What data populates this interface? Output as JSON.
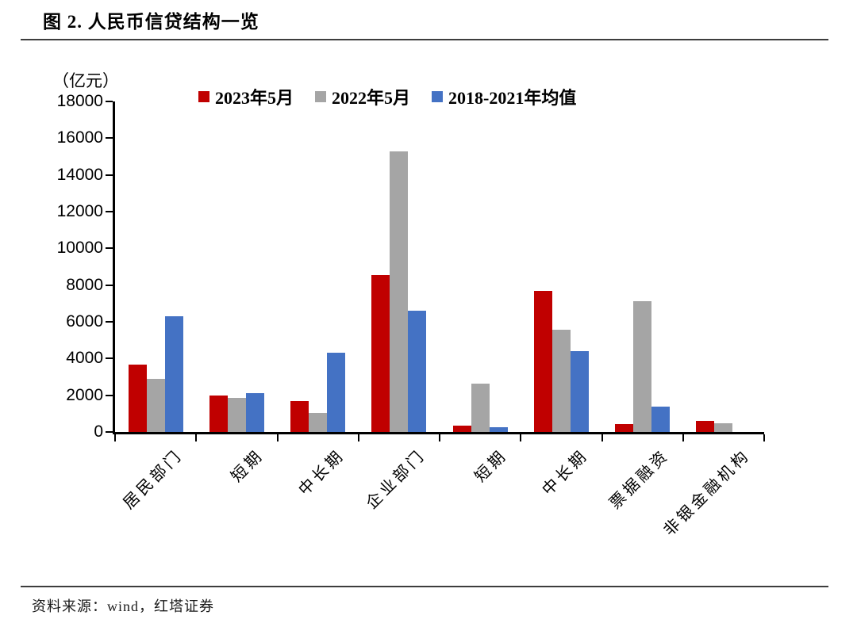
{
  "figure": {
    "title": "图 2. 人民币信贷结构一览",
    "source": "资料来源：wind，红塔证券"
  },
  "chart_data": {
    "type": "bar",
    "title": "人民币信贷结构一览",
    "unit_label": "（亿元）",
    "xlabel": "",
    "ylabel": "亿元",
    "ylim": [
      0,
      18000
    ],
    "ytick_step": 2000,
    "grid": false,
    "legend_position": "top",
    "categories": [
      "居民部门",
      "短期",
      "中长期",
      "企业部门",
      "短期",
      "中长期",
      "票据融资",
      "非银金融机构"
    ],
    "series": [
      {
        "name": "2023年5月",
        "color": "#C00000",
        "values": [
          3672,
          1988,
          1684,
          8558,
          350,
          7698,
          420,
          604
        ]
      },
      {
        "name": "2022年5月",
        "color": "#A5A5A5",
        "values": [
          2888,
          1840,
          1047,
          15300,
          2642,
          5551,
          7129,
          461
        ]
      },
      {
        "name": "2018-2021年均值",
        "color": "#4472C4",
        "values": [
          6300,
          2100,
          4300,
          6600,
          250,
          4400,
          1400,
          0
        ]
      }
    ],
    "axis_color": "#000000"
  }
}
